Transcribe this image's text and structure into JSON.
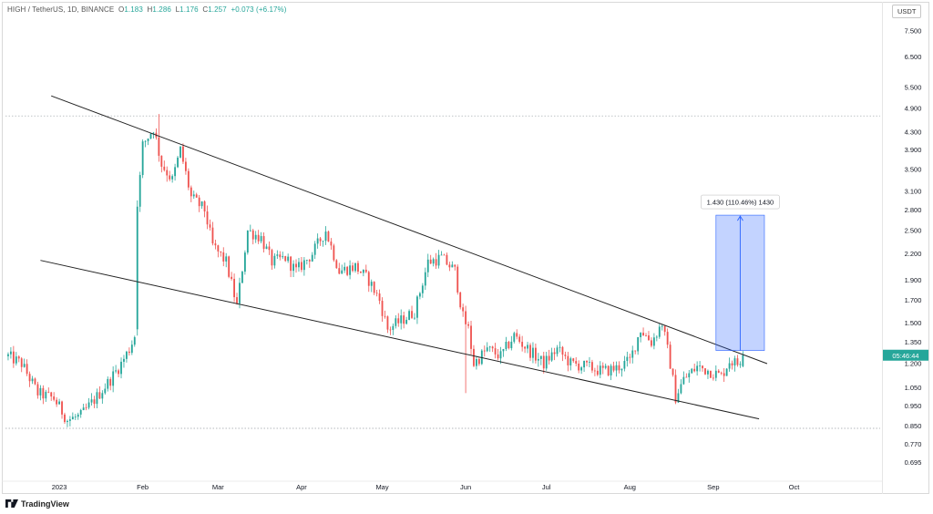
{
  "legend": {
    "pair": "HIGH / TetherUS, 1D, BINANCE",
    "o_label": "O",
    "o": "1.183",
    "h_label": "H",
    "h": "1.286",
    "l_label": "L",
    "l": "1.176",
    "c_label": "C",
    "c": "1.257",
    "change": "+0.073 (+6.17%)"
  },
  "currency_button": "USDT",
  "brand": "TradingView",
  "price_tag": "05:46:44",
  "measure_label": "1.430 (110.46%) 1430",
  "colors": {
    "up": "#26a69a",
    "down": "#ef5350",
    "line": "#222222",
    "measure": "#2962ff"
  },
  "chart_data": {
    "type": "candlestick",
    "scale": "log",
    "ylim": [
      0.66,
      8.3
    ],
    "y_ticks": [
      "7.500",
      "6.500",
      "5.500",
      "4.900",
      "4.300",
      "3.900",
      "3.500",
      "3.100",
      "2.800",
      "2.500",
      "2.200",
      "1.900",
      "1.700",
      "1.500",
      "1.350",
      "1.200",
      "1.050",
      "0.950",
      "0.850",
      "0.770",
      "0.695"
    ],
    "x_ticks": [
      "2023",
      "Feb",
      "Mar",
      "Apr",
      "May",
      "Jun",
      "Jul",
      "Aug",
      "Sep",
      "Oct"
    ],
    "x_tick_days": [
      0,
      31,
      59,
      90,
      120,
      151,
      181,
      212,
      243,
      273
    ],
    "x_range_days": [
      -20,
      305
    ],
    "dashed_levels": [
      4.7,
      0.84
    ],
    "anchors": [
      [
        -19,
        1.25
      ],
      [
        -14,
        1.2
      ],
      [
        -8,
        1.02
      ],
      [
        -2,
        0.99
      ],
      [
        3,
        0.88
      ],
      [
        8,
        0.9
      ],
      [
        14,
        1.0
      ],
      [
        19,
        1.1
      ],
      [
        23,
        1.2
      ],
      [
        26,
        1.3
      ],
      [
        28,
        1.4
      ],
      [
        29,
        2.8
      ],
      [
        31,
        4.0
      ],
      [
        35,
        4.4
      ],
      [
        38,
        3.6
      ],
      [
        42,
        3.3
      ],
      [
        45,
        3.9
      ],
      [
        49,
        3.0
      ],
      [
        54,
        2.8
      ],
      [
        57,
        2.3
      ],
      [
        62,
        2.1
      ],
      [
        66,
        1.65
      ],
      [
        70,
        2.5
      ],
      [
        75,
        2.4
      ],
      [
        79,
        2.1
      ],
      [
        84,
        2.15
      ],
      [
        88,
        2.0
      ],
      [
        94,
        2.2
      ],
      [
        99,
        2.5
      ],
      [
        104,
        2.0
      ],
      [
        110,
        2.05
      ],
      [
        115,
        1.9
      ],
      [
        119,
        1.7
      ],
      [
        122,
        1.45
      ],
      [
        129,
        1.55
      ],
      [
        132,
        1.6
      ],
      [
        137,
        2.1
      ],
      [
        142,
        2.15
      ],
      [
        147,
        2.0
      ],
      [
        150,
        1.55
      ],
      [
        152,
        1.45
      ],
      [
        154,
        1.2
      ],
      [
        159,
        1.3
      ],
      [
        164,
        1.25
      ],
      [
        169,
        1.4
      ],
      [
        174,
        1.3
      ],
      [
        180,
        1.2
      ],
      [
        185,
        1.3
      ],
      [
        190,
        1.2
      ],
      [
        196,
        1.18
      ],
      [
        202,
        1.15
      ],
      [
        207,
        1.17
      ],
      [
        212,
        1.22
      ],
      [
        216,
        1.45
      ],
      [
        220,
        1.35
      ],
      [
        224,
        1.5
      ],
      [
        227,
        1.2
      ],
      [
        229,
        1.0
      ],
      [
        232,
        1.1
      ],
      [
        237,
        1.18
      ],
      [
        242,
        1.15
      ],
      [
        246,
        1.12
      ],
      [
        249,
        1.22
      ],
      [
        252,
        1.2
      ],
      [
        254,
        1.257
      ]
    ],
    "last_candle": {
      "o": 1.183,
      "h": 1.286,
      "l": 1.176,
      "c": 1.257
    },
    "trendlines": [
      {
        "from": [
          -3,
          5.25
        ],
        "to": [
          263,
          1.2
        ]
      },
      {
        "from": [
          -7,
          2.12
        ],
        "to": [
          260,
          0.885
        ]
      }
    ],
    "measure": {
      "day_start": 244,
      "day_end": 262,
      "from": 1.29,
      "to": 2.72,
      "change": 1.43,
      "change_pct": 110.46,
      "bars": 1430
    }
  }
}
